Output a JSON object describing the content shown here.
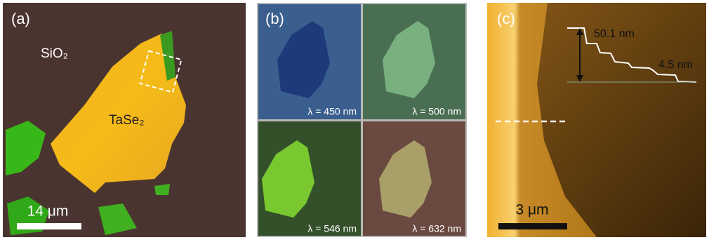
{
  "panels": [
    {
      "label": "(a)",
      "substrate": "SiO₂",
      "flake": "TaSe₂",
      "scale_bar": "14 μm"
    },
    {
      "label": "(b)",
      "images": [
        "λ = 450 nm",
        "λ = 500 nm",
        "λ = 546 nm",
        "λ = 632 nm"
      ]
    },
    {
      "label": "(c)",
      "step_height": "50.1 nm",
      "layer_height": "4.5 nm",
      "scale_bar": "3 μm"
    }
  ]
}
